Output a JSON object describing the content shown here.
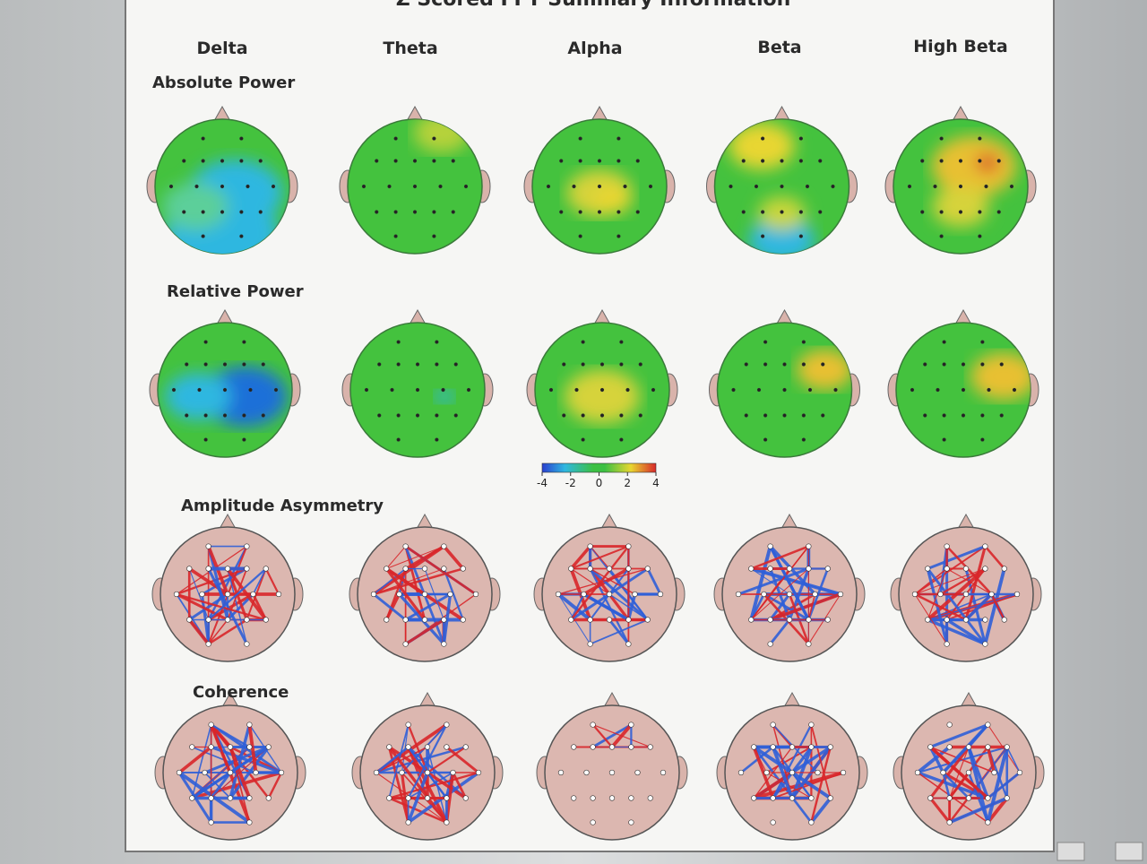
{
  "header": {
    "title": "Z Scored FFT Summary Information",
    "columns": [
      "Delta",
      "Theta",
      "Alpha",
      "Beta",
      "High Beta"
    ]
  },
  "rows": [
    "Absolute Power",
    "Relative Power",
    "Amplitude Asymmetry",
    "Coherence"
  ],
  "colorbar": {
    "ticks": [
      -4,
      -2,
      0,
      2,
      4
    ]
  }
}
